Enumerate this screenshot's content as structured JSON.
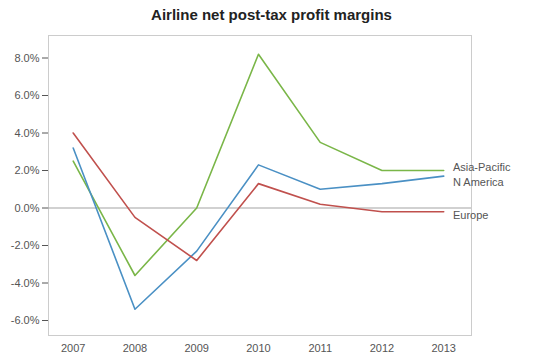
{
  "chart_data": {
    "type": "line",
    "title": "Airline net post-tax profit margins",
    "x": [
      2007,
      2008,
      2009,
      2010,
      2011,
      2012,
      2013
    ],
    "series": [
      {
        "name": "Asia-Pacific",
        "color": "#7ab648",
        "values": [
          0.025,
          -0.036,
          0.0,
          0.082,
          0.035,
          0.02,
          0.02
        ]
      },
      {
        "name": "N America",
        "color": "#4a90c4",
        "values": [
          0.032,
          -0.054,
          -0.023,
          0.023,
          0.01,
          0.013,
          0.017
        ]
      },
      {
        "name": "Europe",
        "color": "#c0504d",
        "values": [
          0.04,
          -0.005,
          -0.028,
          0.013,
          0.002,
          -0.002,
          -0.002
        ]
      }
    ],
    "xlim": [
      2006.6,
      2013.45
    ],
    "xticks": [
      2007,
      2008,
      2009,
      2010,
      2011,
      2012,
      2013
    ],
    "ylim": [
      -0.068,
      0.092
    ],
    "yticks": [
      {
        "value": -0.06,
        "label": "-6.0%"
      },
      {
        "value": -0.04,
        "label": "-4.0%"
      },
      {
        "value": -0.02,
        "label": "-2.0%"
      },
      {
        "value": 0.0,
        "label": "0.0%"
      },
      {
        "value": 0.02,
        "label": "2.0%"
      },
      {
        "value": 0.04,
        "label": "4.0%"
      },
      {
        "value": 0.06,
        "label": "6.0%"
      },
      {
        "value": 0.08,
        "label": "8.0%"
      }
    ],
    "grid": false,
    "annotations": [
      {
        "text": "Asia-Pacific",
        "x": 2013.15,
        "y": 0.0215
      },
      {
        "text": "N America",
        "x": 2013.15,
        "y": 0.0135
      },
      {
        "text": "Europe",
        "x": 2013.15,
        "y": -0.004
      }
    ]
  }
}
